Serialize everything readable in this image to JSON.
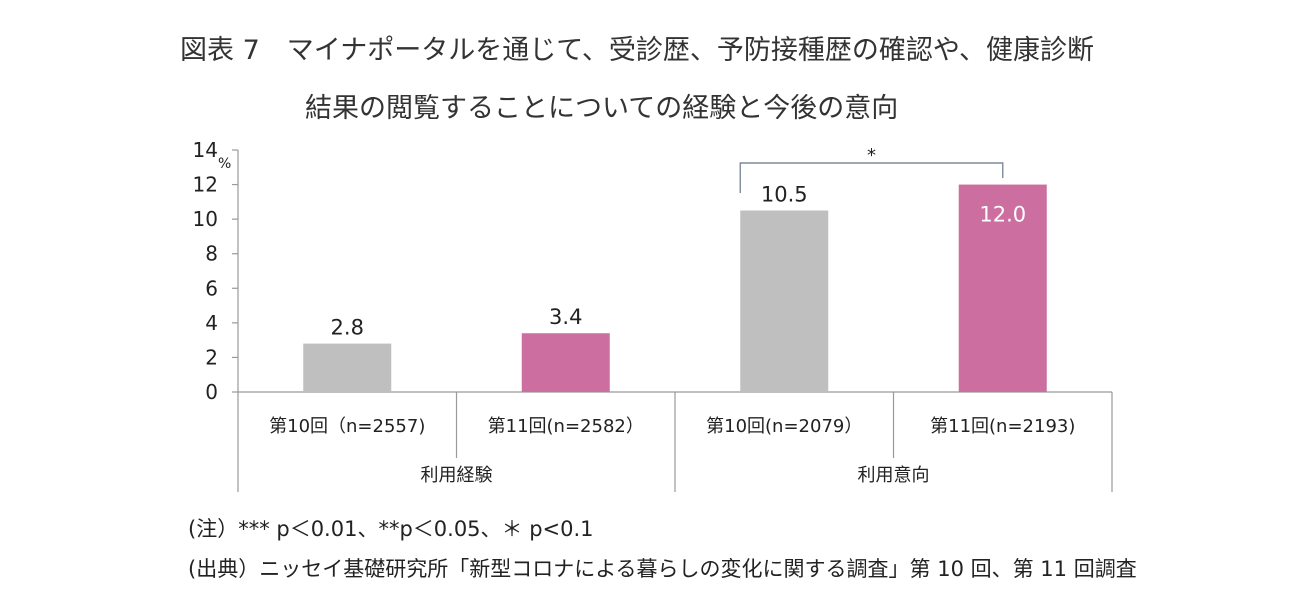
{
  "title": {
    "line1": "図表 7　マイナポータルを通じて、受診歴、予防接種歴の確認や、健康診断",
    "line2": "結果の閲覧することについての経験と今後の意向"
  },
  "chart_data": {
    "type": "bar",
    "unit": "%",
    "ylim": [
      0,
      14
    ],
    "yticks": [
      "0",
      "2",
      "4",
      "6",
      "8",
      "10",
      "12",
      "14"
    ],
    "categories": [
      "第10回（n=2557)",
      "第11回(n=2582）",
      "第10回(n=2079）",
      "第11回(n=2193)"
    ],
    "groups": [
      {
        "label": "利用経験",
        "span": [
          0,
          1
        ]
      },
      {
        "label": "利用意向",
        "span": [
          2,
          3
        ]
      }
    ],
    "values": [
      2.8,
      3.4,
      10.5,
      12.0
    ],
    "value_labels": [
      "2.8",
      "3.4",
      "10.5",
      "12.0"
    ],
    "bar_colors": [
      "#BFBFBF",
      "#CC6E9F",
      "#BFBFBF",
      "#CC6E9F"
    ],
    "significance": {
      "from": 2,
      "to": 3,
      "label": "*"
    },
    "grid": false
  },
  "notes": {
    "line1": "(注）*** p＜0.01、**p＜0.05、＊ p<0.1",
    "line2": "(出典）ニッセイ基礎研究所「新型コロナによる暮らしの変化に関する調査」第 10 回、第 11 回調査"
  },
  "colors": {
    "axis": "#9A9A9A",
    "text": "#222222"
  }
}
